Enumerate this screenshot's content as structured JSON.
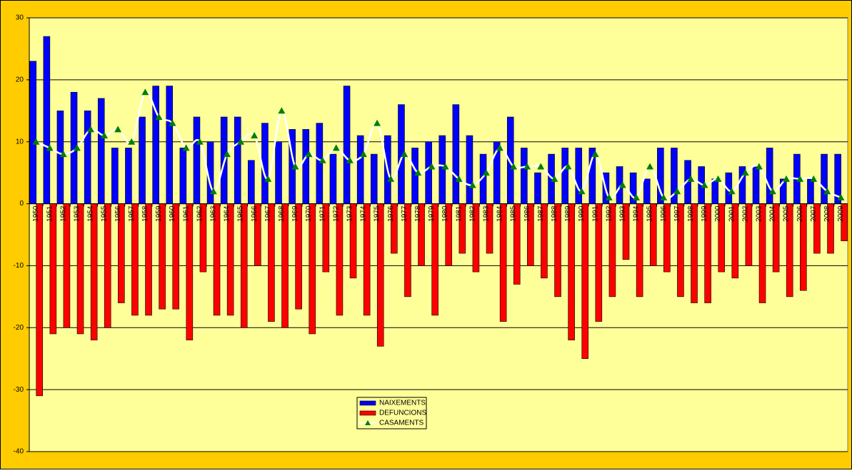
{
  "chart_data": {
    "type": "bar",
    "categories": [
      "1950",
      "1951",
      "1952",
      "1953",
      "1954",
      "1955",
      "1956",
      "1957",
      "1958",
      "1959",
      "1960",
      "1961",
      "1962",
      "1963",
      "1964",
      "1965",
      "1966",
      "1967",
      "1968",
      "1969",
      "1970",
      "1971",
      "1972",
      "1973",
      "1974",
      "1975",
      "1976",
      "1977",
      "1978",
      "1979",
      "1980",
      "1981",
      "1982",
      "1983",
      "1984",
      "1985",
      "1986",
      "1987",
      "1988",
      "1989",
      "1990",
      "1991",
      "1992",
      "1993",
      "1994",
      "1995",
      "1996",
      "1997",
      "1998",
      "1999",
      "2000",
      "2001",
      "2002",
      "2003",
      "2004",
      "2005",
      "2006",
      "2007",
      "2008",
      "2009"
    ],
    "series": [
      {
        "name": "NAIXEMENTS",
        "type": "bar",
        "color": "#0000ff",
        "values": [
          23,
          27,
          15,
          18,
          15,
          17,
          9,
          9,
          14,
          19,
          19,
          9,
          14,
          10,
          14,
          14,
          7,
          13,
          10,
          12,
          12,
          13,
          8,
          19,
          11,
          8,
          11,
          16,
          9,
          10,
          11,
          16,
          11,
          8,
          10,
          14,
          9,
          5,
          8,
          9,
          9,
          9,
          5,
          6,
          5,
          4,
          9,
          9,
          7,
          6,
          4,
          5,
          6,
          6,
          9,
          4,
          8,
          4,
          8,
          8
        ]
      },
      {
        "name": "DEFUNCIONS",
        "type": "bar",
        "color": "#ff0000",
        "values": [
          -31,
          -21,
          -20,
          -21,
          -22,
          -20,
          -16,
          -18,
          -18,
          -17,
          -17,
          -22,
          -11,
          -18,
          -18,
          -20,
          -10,
          -19,
          -20,
          -17,
          -21,
          -11,
          -18,
          -12,
          -18,
          -23,
          -8,
          -15,
          -10,
          -18,
          -10,
          -8,
          -11,
          -8,
          -19,
          -13,
          -10,
          -12,
          -15,
          -22,
          -25,
          -19,
          -15,
          -9,
          -15,
          -10,
          -11,
          -15,
          -16,
          -16,
          -11,
          -12,
          -10,
          -16,
          -11,
          -15,
          -14,
          -8,
          -8,
          -6
        ]
      },
      {
        "name": "CASAMENTS",
        "type": "line",
        "color": "#ffffff",
        "marker_color": "#008000",
        "values": [
          10,
          9,
          8,
          9,
          12,
          11,
          12,
          10,
          18,
          14,
          13,
          9,
          10,
          2,
          8,
          10,
          11,
          4,
          15,
          6,
          8,
          7,
          9,
          7,
          8,
          13,
          4,
          8,
          5,
          6,
          6,
          4,
          3,
          5,
          9,
          6,
          6,
          6,
          4,
          6,
          2,
          8,
          1,
          3,
          1,
          6,
          1,
          2,
          4,
          3,
          4,
          2,
          5,
          6,
          2,
          4,
          4,
          4,
          2,
          1
        ]
      }
    ],
    "ylim": [
      -40,
      30
    ],
    "yticks": [
      -40,
      -30,
      -20,
      -10,
      0,
      10,
      20,
      30
    ],
    "grid": true,
    "background": "#ffcc00",
    "plot_background": "#ffff99"
  }
}
